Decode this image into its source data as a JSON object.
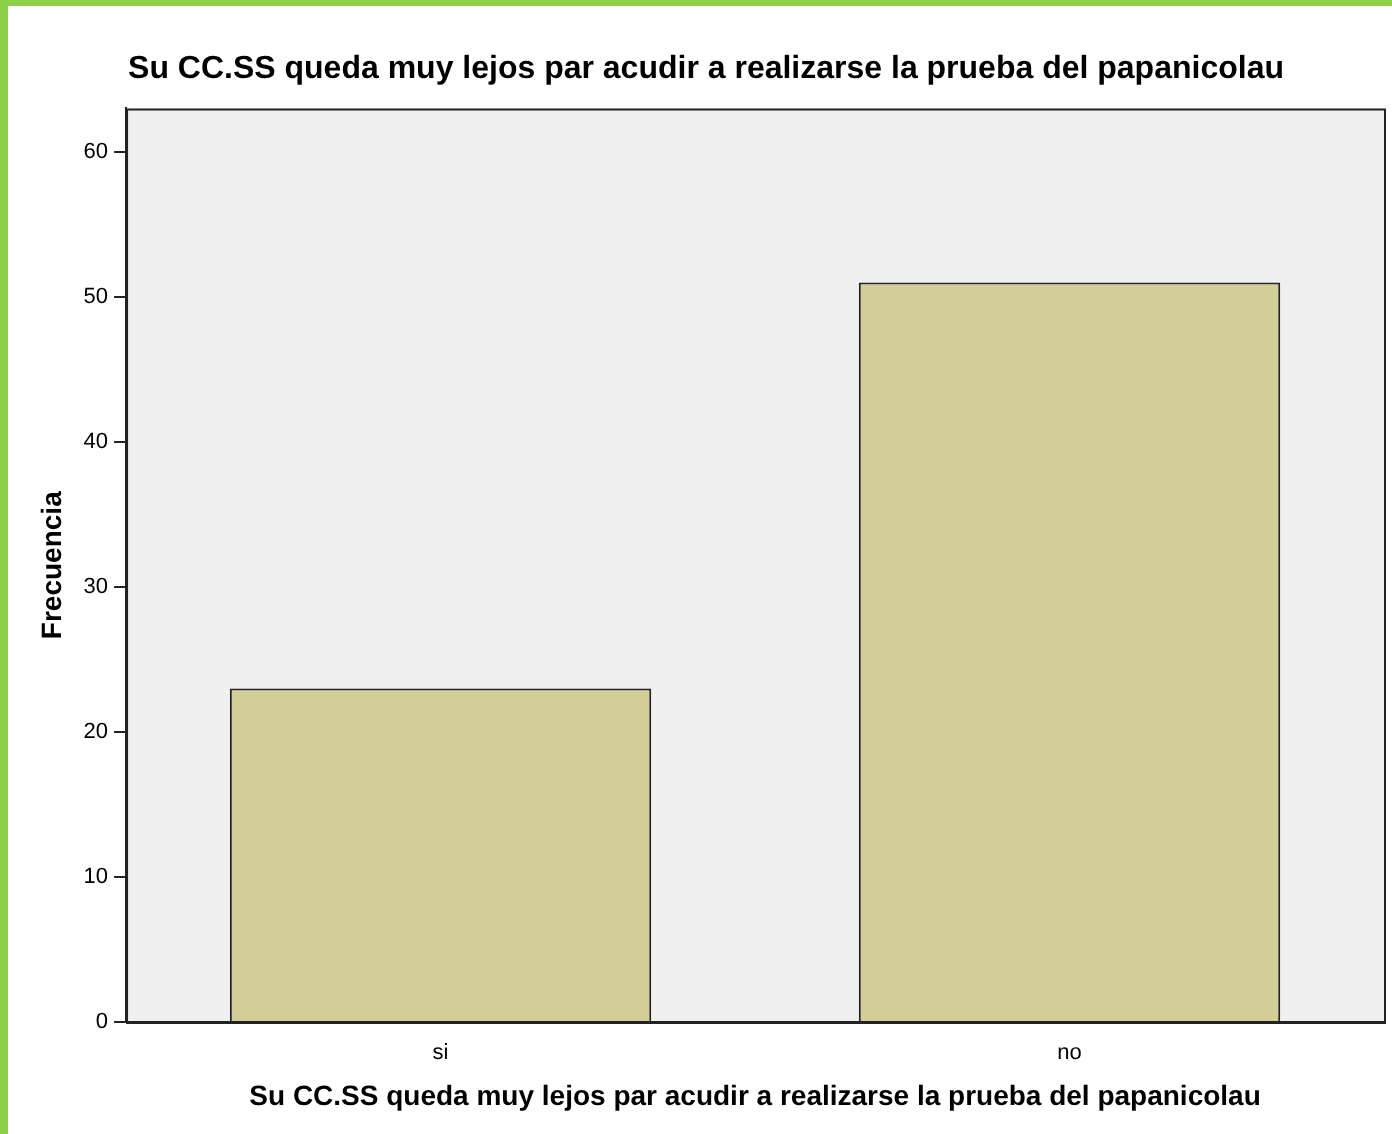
{
  "chart_data": {
    "type": "bar",
    "title": "Su CC.SS queda muy lejos par acudir a realizarse la prueba del papanicolau",
    "xlabel": "Su CC.SS queda muy lejos par acudir a realizarse la prueba del papanicolau",
    "ylabel": "Frecuencia",
    "categories": [
      "si",
      "no"
    ],
    "values": [
      23,
      51
    ],
    "color": "#d3ce97",
    "ylim": [
      0,
      63
    ],
    "yticks": [
      0,
      10,
      20,
      30,
      40,
      50,
      60
    ],
    "grid": false,
    "legend": false
  }
}
